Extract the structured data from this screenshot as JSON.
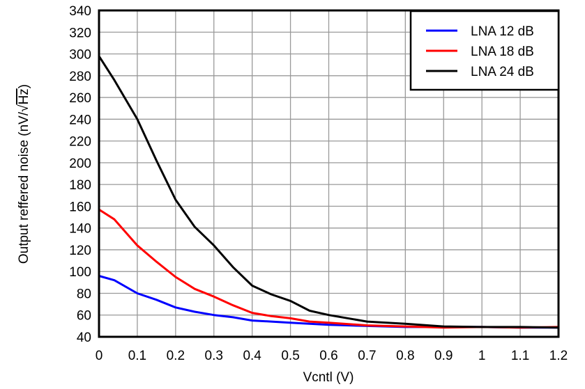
{
  "chart_data": {
    "type": "line",
    "title": "",
    "xlabel": "Vcntl (V)",
    "ylabel": "Output reffered noise  (nV/√Hz)",
    "ylabel_main": "Output reffered noise  (nV/",
    "ylabel_sqrt": "Hz",
    "ylabel_close": ")",
    "xlim": [
      0,
      1.2
    ],
    "ylim": [
      40,
      340
    ],
    "grid": true,
    "legend_position": "upper right",
    "x_ticks": [
      "0",
      "0.1",
      "0.2",
      "0.3",
      "0.4",
      "0.5",
      "0.6",
      "0.7",
      "0.8",
      "0.9",
      "1",
      "1.1",
      "1.2"
    ],
    "y_ticks": [
      "40",
      "60",
      "80",
      "100",
      "120",
      "140",
      "160",
      "180",
      "200",
      "220",
      "240",
      "260",
      "280",
      "300",
      "320",
      "340"
    ],
    "x": [
      0,
      0.04,
      0.1,
      0.15,
      0.2,
      0.25,
      0.3,
      0.35,
      0.4,
      0.45,
      0.5,
      0.55,
      0.6,
      0.7,
      0.8,
      0.9,
      1.0,
      1.1,
      1.2
    ],
    "series": [
      {
        "name": "LNA 12 dB",
        "color": "#0000ff",
        "values": [
          96,
          92,
          80,
          74,
          67,
          63,
          60,
          58,
          55,
          54,
          53,
          52,
          51,
          50,
          49,
          49,
          49,
          48.5,
          48.5
        ]
      },
      {
        "name": "LNA 18 dB",
        "color": "#ff0000",
        "values": [
          157,
          148,
          124,
          109,
          95,
          84,
          77,
          69,
          62,
          59,
          57,
          54,
          53,
          50.5,
          49.5,
          48.5,
          49,
          48.5,
          49
        ]
      },
      {
        "name": "LNA 24 dB",
        "color": "#000000",
        "values": [
          298,
          276,
          240,
          202,
          166,
          141,
          124,
          104,
          87,
          79,
          73,
          64,
          60,
          54,
          52,
          49.5,
          49,
          49,
          48.5
        ]
      }
    ]
  },
  "legend": {
    "items": [
      {
        "label": "LNA 12 dB",
        "color": "#0000ff"
      },
      {
        "label": "LNA 18 dB",
        "color": "#ff0000"
      },
      {
        "label": "LNA 24 dB",
        "color": "#000000"
      }
    ]
  },
  "style": {
    "grid_color": "#999999",
    "frame_color": "#000000"
  }
}
